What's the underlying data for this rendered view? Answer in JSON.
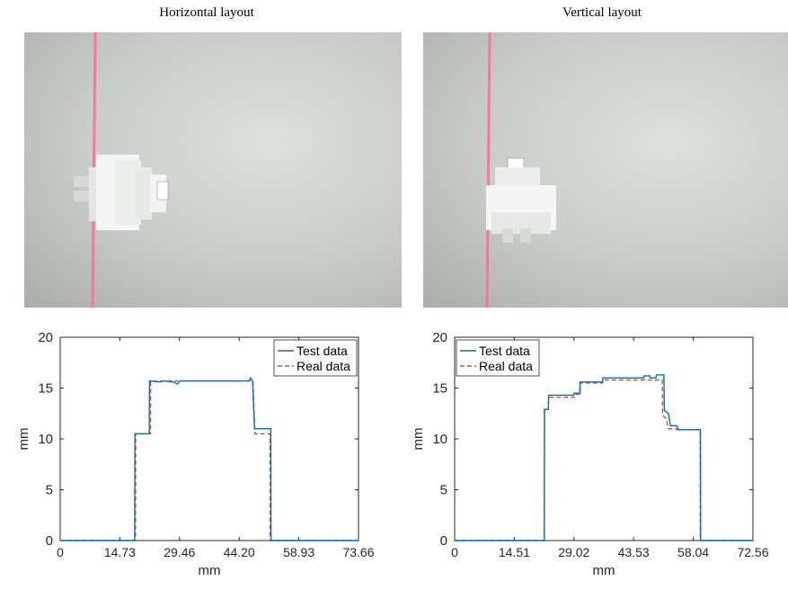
{
  "panels": [
    {
      "title": "Horizontal layout",
      "photo": {
        "subject": "white connector part on grey surface",
        "laser_color": "#ff6f91",
        "layout": "horizontal"
      },
      "chart": {
        "type": "line",
        "xlabel": "mm",
        "ylabel": "mm",
        "xlim": [
          0,
          73.66
        ],
        "ylim": [
          0,
          20
        ],
        "xticks": [
          "0",
          "14.73",
          "29.46",
          "44.20",
          "58.93",
          "73.66"
        ],
        "xtick_values": [
          0,
          14.73,
          29.46,
          44.2,
          58.93,
          73.66
        ],
        "yticks": [
          "0",
          "5",
          "10",
          "15",
          "20"
        ],
        "ytick_values": [
          0,
          5,
          10,
          15,
          20
        ],
        "legend_position": "top-right",
        "series": [
          {
            "name": "Test data",
            "color": "#0072bd",
            "style": "solid",
            "points": [
              [
                0,
                0
              ],
              [
                18.4,
                0
              ],
              [
                18.45,
                10.5
              ],
              [
                22.0,
                10.5
              ],
              [
                22.05,
                15.7
              ],
              [
                24.5,
                15.6
              ],
              [
                25.5,
                15.7
              ],
              [
                28.0,
                15.6
              ],
              [
                29.0,
                15.4
              ],
              [
                29.6,
                15.7
              ],
              [
                46.7,
                15.7
              ],
              [
                47.0,
                16.0
              ],
              [
                47.5,
                15.7
              ],
              [
                48.0,
                11.0
              ],
              [
                52.0,
                11.0
              ],
              [
                52.05,
                0
              ],
              [
                73.66,
                0
              ]
            ]
          },
          {
            "name": "Real data",
            "color": "#d95319",
            "style": "dashed",
            "points": [
              [
                0,
                0
              ],
              [
                18.6,
                0
              ],
              [
                18.65,
                10.5
              ],
              [
                22.3,
                10.5
              ],
              [
                22.35,
                15.7
              ],
              [
                47.6,
                15.7
              ],
              [
                48.1,
                10.5
              ],
              [
                51.8,
                10.5
              ],
              [
                51.85,
                0
              ],
              [
                73.66,
                0
              ]
            ]
          }
        ]
      }
    },
    {
      "title": "Vertical layout",
      "photo": {
        "subject": "white connector part on grey surface",
        "laser_color": "#ff6f91",
        "layout": "vertical"
      },
      "chart": {
        "type": "line",
        "xlabel": "mm",
        "ylabel": "mm",
        "xlim": [
          0,
          72.56
        ],
        "ylim": [
          0,
          20
        ],
        "xticks": [
          "0",
          "14.51",
          "29.02",
          "43.53",
          "58.04",
          "72.56"
        ],
        "xtick_values": [
          0,
          14.51,
          29.02,
          43.53,
          58.04,
          72.56
        ],
        "yticks": [
          "0",
          "5",
          "10",
          "15",
          "20"
        ],
        "ytick_values": [
          0,
          5,
          10,
          15,
          20
        ],
        "legend_position": "top-left",
        "series": [
          {
            "name": "Test data",
            "color": "#0072bd",
            "style": "solid",
            "points": [
              [
                0,
                0
              ],
              [
                21.8,
                0
              ],
              [
                21.85,
                12.9
              ],
              [
                22.8,
                12.9
              ],
              [
                22.85,
                14.3
              ],
              [
                29.0,
                14.3
              ],
              [
                29.05,
                14.5
              ],
              [
                30.5,
                14.5
              ],
              [
                30.55,
                15.6
              ],
              [
                36.0,
                15.6
              ],
              [
                36.05,
                16.0
              ],
              [
                46.0,
                16.0
              ],
              [
                46.05,
                16.2
              ],
              [
                47.5,
                16.2
              ],
              [
                47.55,
                16.0
              ],
              [
                49.0,
                16.0
              ],
              [
                49.05,
                16.3
              ],
              [
                50.9,
                16.3
              ],
              [
                51.0,
                12.8
              ],
              [
                52.0,
                12.5
              ],
              [
                52.5,
                11.3
              ],
              [
                54.0,
                11.3
              ],
              [
                54.5,
                10.9
              ],
              [
                59.8,
                10.9
              ],
              [
                59.85,
                0
              ],
              [
                72.56,
                0
              ]
            ]
          },
          {
            "name": "Real data",
            "color": "#d95319",
            "style": "dashed",
            "points": [
              [
                0,
                0
              ],
              [
                21.8,
                0
              ],
              [
                21.85,
                12.9
              ],
              [
                22.8,
                12.9
              ],
              [
                22.85,
                14.1
              ],
              [
                29.1,
                14.1
              ],
              [
                29.15,
                14.4
              ],
              [
                30.4,
                14.4
              ],
              [
                30.45,
                15.5
              ],
              [
                36.0,
                15.5
              ],
              [
                36.05,
                15.8
              ],
              [
                50.5,
                15.8
              ],
              [
                50.6,
                12.3
              ],
              [
                51.5,
                12.0
              ],
              [
                52.0,
                11.0
              ],
              [
                54.0,
                11.0
              ],
              [
                54.1,
                10.9
              ],
              [
                59.7,
                10.9
              ],
              [
                59.75,
                0
              ],
              [
                72.56,
                0
              ]
            ]
          }
        ]
      }
    }
  ]
}
